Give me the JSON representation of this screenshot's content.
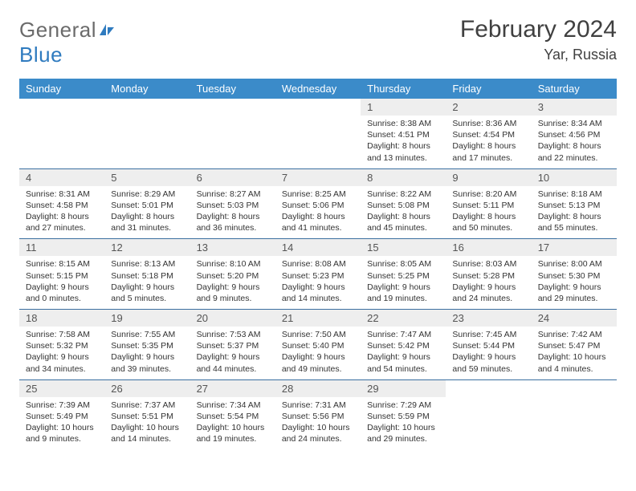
{
  "logo": {
    "text1": "General",
    "text2": "Blue"
  },
  "title": "February 2024",
  "location": "Yar, Russia",
  "header_bg": "#3b8bc9",
  "border_color": "#3b6fa0",
  "daynum_bg": "#eeeeee",
  "weekdays": [
    "Sunday",
    "Monday",
    "Tuesday",
    "Wednesday",
    "Thursday",
    "Friday",
    "Saturday"
  ],
  "weeks": [
    [
      null,
      null,
      null,
      null,
      {
        "n": "1",
        "sr": "8:38 AM",
        "ss": "4:51 PM",
        "dl": "8 hours and 13 minutes."
      },
      {
        "n": "2",
        "sr": "8:36 AM",
        "ss": "4:54 PM",
        "dl": "8 hours and 17 minutes."
      },
      {
        "n": "3",
        "sr": "8:34 AM",
        "ss": "4:56 PM",
        "dl": "8 hours and 22 minutes."
      }
    ],
    [
      {
        "n": "4",
        "sr": "8:31 AM",
        "ss": "4:58 PM",
        "dl": "8 hours and 27 minutes."
      },
      {
        "n": "5",
        "sr": "8:29 AM",
        "ss": "5:01 PM",
        "dl": "8 hours and 31 minutes."
      },
      {
        "n": "6",
        "sr": "8:27 AM",
        "ss": "5:03 PM",
        "dl": "8 hours and 36 minutes."
      },
      {
        "n": "7",
        "sr": "8:25 AM",
        "ss": "5:06 PM",
        "dl": "8 hours and 41 minutes."
      },
      {
        "n": "8",
        "sr": "8:22 AM",
        "ss": "5:08 PM",
        "dl": "8 hours and 45 minutes."
      },
      {
        "n": "9",
        "sr": "8:20 AM",
        "ss": "5:11 PM",
        "dl": "8 hours and 50 minutes."
      },
      {
        "n": "10",
        "sr": "8:18 AM",
        "ss": "5:13 PM",
        "dl": "8 hours and 55 minutes."
      }
    ],
    [
      {
        "n": "11",
        "sr": "8:15 AM",
        "ss": "5:15 PM",
        "dl": "9 hours and 0 minutes."
      },
      {
        "n": "12",
        "sr": "8:13 AM",
        "ss": "5:18 PM",
        "dl": "9 hours and 5 minutes."
      },
      {
        "n": "13",
        "sr": "8:10 AM",
        "ss": "5:20 PM",
        "dl": "9 hours and 9 minutes."
      },
      {
        "n": "14",
        "sr": "8:08 AM",
        "ss": "5:23 PM",
        "dl": "9 hours and 14 minutes."
      },
      {
        "n": "15",
        "sr": "8:05 AM",
        "ss": "5:25 PM",
        "dl": "9 hours and 19 minutes."
      },
      {
        "n": "16",
        "sr": "8:03 AM",
        "ss": "5:28 PM",
        "dl": "9 hours and 24 minutes."
      },
      {
        "n": "17",
        "sr": "8:00 AM",
        "ss": "5:30 PM",
        "dl": "9 hours and 29 minutes."
      }
    ],
    [
      {
        "n": "18",
        "sr": "7:58 AM",
        "ss": "5:32 PM",
        "dl": "9 hours and 34 minutes."
      },
      {
        "n": "19",
        "sr": "7:55 AM",
        "ss": "5:35 PM",
        "dl": "9 hours and 39 minutes."
      },
      {
        "n": "20",
        "sr": "7:53 AM",
        "ss": "5:37 PM",
        "dl": "9 hours and 44 minutes."
      },
      {
        "n": "21",
        "sr": "7:50 AM",
        "ss": "5:40 PM",
        "dl": "9 hours and 49 minutes."
      },
      {
        "n": "22",
        "sr": "7:47 AM",
        "ss": "5:42 PM",
        "dl": "9 hours and 54 minutes."
      },
      {
        "n": "23",
        "sr": "7:45 AM",
        "ss": "5:44 PM",
        "dl": "9 hours and 59 minutes."
      },
      {
        "n": "24",
        "sr": "7:42 AM",
        "ss": "5:47 PM",
        "dl": "10 hours and 4 minutes."
      }
    ],
    [
      {
        "n": "25",
        "sr": "7:39 AM",
        "ss": "5:49 PM",
        "dl": "10 hours and 9 minutes."
      },
      {
        "n": "26",
        "sr": "7:37 AM",
        "ss": "5:51 PM",
        "dl": "10 hours and 14 minutes."
      },
      {
        "n": "27",
        "sr": "7:34 AM",
        "ss": "5:54 PM",
        "dl": "10 hours and 19 minutes."
      },
      {
        "n": "28",
        "sr": "7:31 AM",
        "ss": "5:56 PM",
        "dl": "10 hours and 24 minutes."
      },
      {
        "n": "29",
        "sr": "7:29 AM",
        "ss": "5:59 PM",
        "dl": "10 hours and 29 minutes."
      },
      null,
      null
    ]
  ],
  "labels": {
    "sunrise": "Sunrise:",
    "sunset": "Sunset:",
    "daylight": "Daylight:"
  }
}
